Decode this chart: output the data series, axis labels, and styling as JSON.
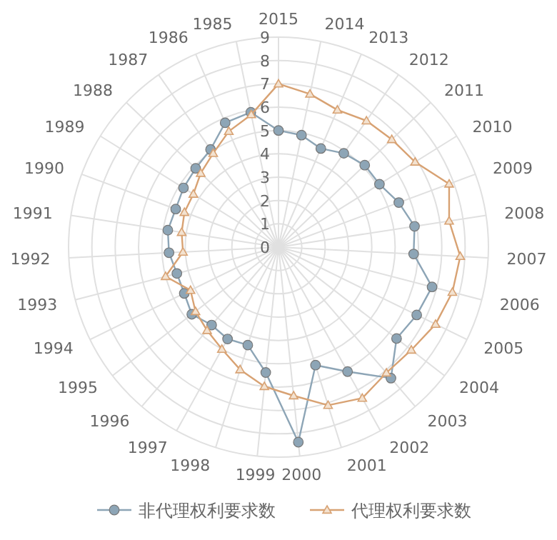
{
  "chart_data": {
    "type": "radar",
    "categories": [
      "2015",
      "2014",
      "2013",
      "2012",
      "2011",
      "2010",
      "2009",
      "2008",
      "2007",
      "2006",
      "2005",
      "2004",
      "2003",
      "2002",
      "2001",
      "2000",
      "1999",
      "1998",
      "1997",
      "1996",
      "1995",
      "1994",
      "1993",
      "1992",
      "1991",
      "1990",
      "1989",
      "1988",
      "1987",
      "1986",
      "1985"
    ],
    "series": [
      {
        "name": "非代理权利要求数",
        "color": "#8da5b6",
        "values": [
          5.0,
          4.9,
          4.6,
          4.9,
          5.1,
          5.1,
          5.5,
          5.9,
          5.8,
          6.8,
          6.6,
          6.4,
          7.4,
          6.1,
          5.3,
          8.4,
          5.4,
          4.4,
          4.5,
          4.4,
          4.7,
          4.5,
          4.5,
          4.7,
          4.8,
          4.7,
          4.8,
          4.9,
          5.1,
          5.8,
          5.9
        ],
        "marker": "circle"
      },
      {
        "name": "代理权利要求数",
        "color": "#d8a273",
        "values": [
          7.0,
          6.7,
          6.4,
          6.6,
          6.7,
          6.9,
          7.8,
          7.4,
          7.8,
          7.7,
          7.5,
          7.2,
          7.1,
          7.4,
          7.1,
          6.4,
          6.0,
          5.5,
          5.0,
          4.7,
          4.5,
          4.2,
          5.0,
          4.1,
          4.2,
          4.3,
          4.3,
          4.6,
          4.9,
          5.4,
          5.8
        ],
        "marker": "triangle"
      }
    ],
    "ylim": [
      0,
      9
    ],
    "yticks": [
      0,
      1,
      2,
      3,
      4,
      5,
      6,
      7,
      8,
      9
    ],
    "grid": true,
    "legend": "bottom"
  }
}
